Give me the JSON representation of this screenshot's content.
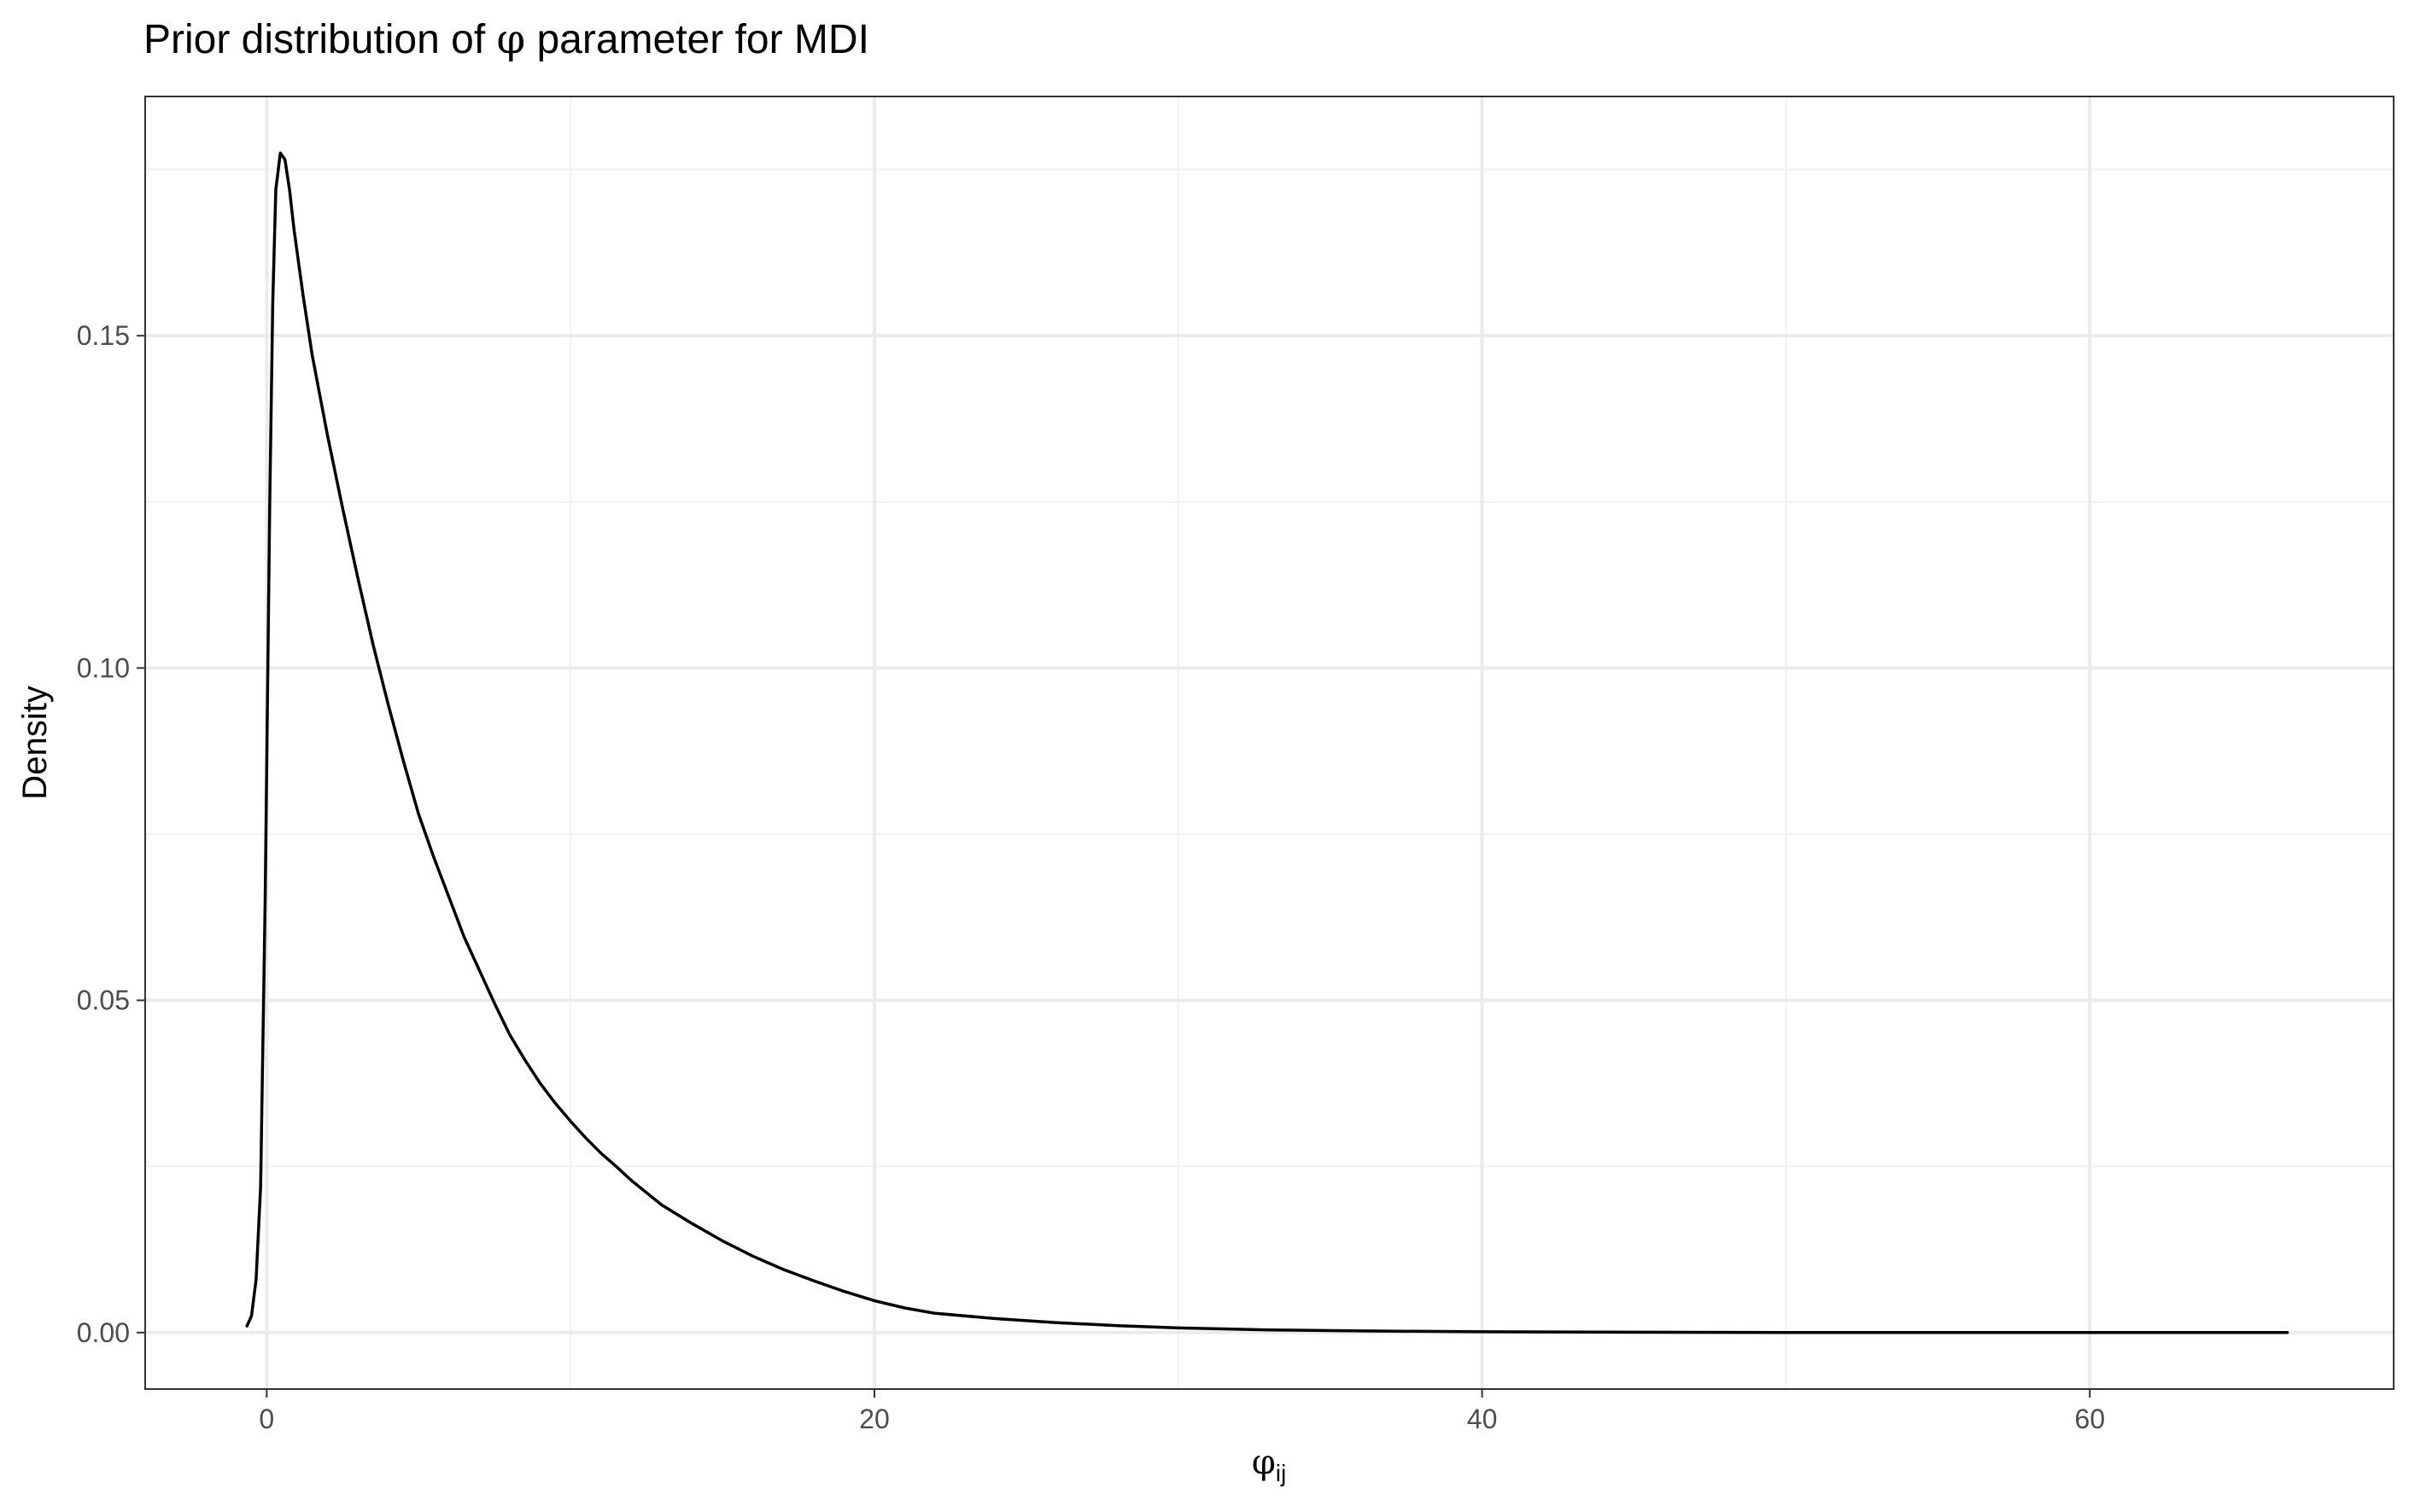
{
  "chart_data": {
    "type": "line",
    "title": {
      "prefix": "Prior distribution of",
      "symbol": "φ",
      "suffix": "parameter for MDI"
    },
    "xlabel": {
      "symbol": "φ",
      "subscript": "ij"
    },
    "ylabel": "Density",
    "xlim": [
      -4,
      70
    ],
    "ylim": [
      -0.0085,
      0.186
    ],
    "x_ticks": [
      0,
      20,
      40,
      60
    ],
    "x_tick_labels": [
      "0",
      "20",
      "40",
      "60"
    ],
    "x_minor_ticks": [
      10,
      30,
      50
    ],
    "y_ticks": [
      0.0,
      0.05,
      0.1,
      0.15
    ],
    "y_tick_labels": [
      "0.00",
      "0.05",
      "0.10",
      "0.15"
    ],
    "y_minor_ticks": [
      0.025,
      0.075,
      0.125,
      0.175
    ],
    "grid": true,
    "legend": "none",
    "series": [
      {
        "color": "#000000",
        "x": [
          -0.65,
          -0.5,
          -0.35,
          -0.2,
          -0.05,
          0.1,
          0.2,
          0.3,
          0.45,
          0.6,
          0.75,
          0.9,
          1.2,
          1.5,
          2.0,
          2.5,
          3.0,
          3.5,
          4.0,
          4.5,
          5.0,
          5.5,
          6.0,
          6.5,
          7.0,
          7.5,
          8.0,
          8.5,
          9.0,
          9.5,
          10.0,
          10.5,
          11.0,
          11.5,
          12.0,
          13.0,
          14.0,
          15.0,
          16.0,
          17.0,
          18.0,
          19.0,
          20.0,
          21.0,
          22.0,
          24.0,
          26.0,
          28.0,
          30.0,
          33.0,
          36.0,
          40.0,
          45.0,
          50.0,
          55.0,
          60.0,
          66.5
        ],
        "y": [
          0.001,
          0.0025,
          0.008,
          0.022,
          0.065,
          0.125,
          0.155,
          0.172,
          0.1775,
          0.1765,
          0.172,
          0.166,
          0.156,
          0.147,
          0.135,
          0.124,
          0.1135,
          0.1035,
          0.0945,
          0.086,
          0.078,
          0.0715,
          0.0655,
          0.0595,
          0.0545,
          0.0495,
          0.0448,
          0.041,
          0.0375,
          0.0345,
          0.0318,
          0.0293,
          0.027,
          0.025,
          0.0229,
          0.0192,
          0.0164,
          0.0138,
          0.0115,
          0.0095,
          0.0078,
          0.0062,
          0.0048,
          0.0037,
          0.0029,
          0.0021,
          0.0015,
          0.00105,
          0.0007,
          0.0004,
          0.00025,
          0.00012,
          5e-05,
          2e-05,
          1e-05,
          5e-06,
          0.0
        ]
      }
    ]
  }
}
